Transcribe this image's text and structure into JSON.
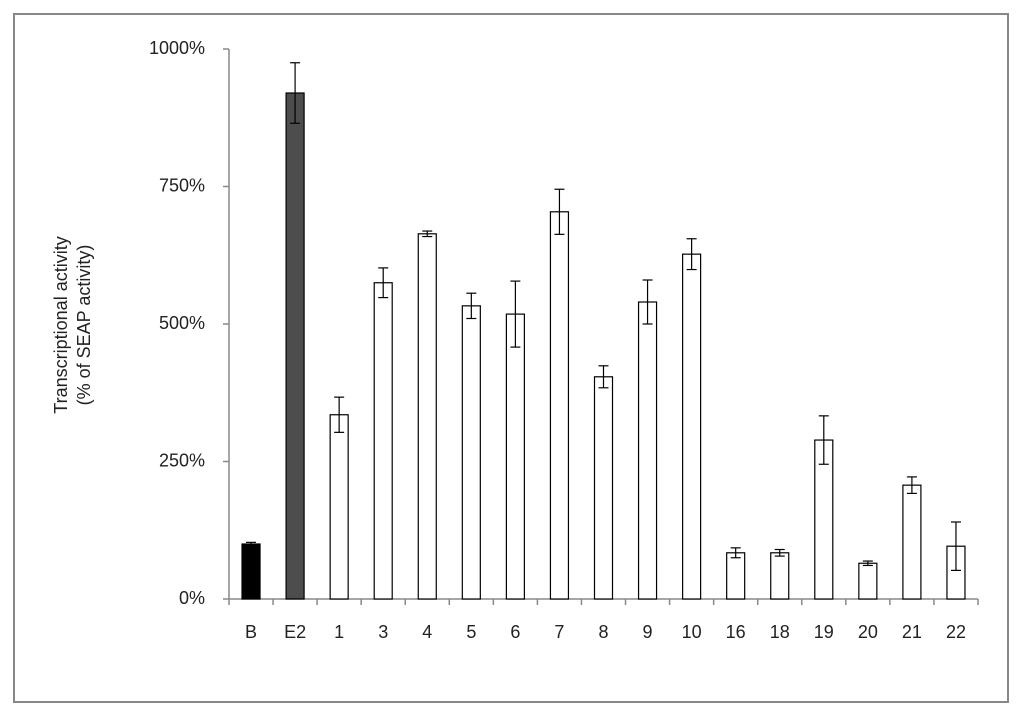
{
  "chart_data": {
    "type": "bar",
    "ylabel": [
      "Transcriptional activity",
      "(% of SEAP activity)"
    ],
    "categories": [
      "B",
      "E2",
      "1",
      "3",
      "4",
      "5",
      "6",
      "7",
      "8",
      "9",
      "10",
      "16",
      "18",
      "19",
      "20",
      "21",
      "22"
    ],
    "values": [
      100,
      920,
      335,
      575,
      664,
      533,
      518,
      704,
      404,
      540,
      627,
      84,
      84,
      289,
      65,
      207,
      96
    ],
    "errors": [
      3,
      55,
      32,
      27,
      5,
      23,
      60,
      41,
      20,
      40,
      28,
      9,
      6,
      44,
      4,
      15,
      44
    ],
    "colors": [
      "#000000",
      "#4d4d4d",
      "#ffffff",
      "#ffffff",
      "#ffffff",
      "#ffffff",
      "#ffffff",
      "#ffffff",
      "#ffffff",
      "#ffffff",
      "#ffffff",
      "#ffffff",
      "#ffffff",
      "#ffffff",
      "#ffffff",
      "#ffffff",
      "#ffffff"
    ],
    "ylim": [
      0,
      1000
    ],
    "yticks": [
      {
        "value": 0,
        "label": "0%"
      },
      {
        "value": 250,
        "label": "250%"
      },
      {
        "value": 500,
        "label": "500%"
      },
      {
        "value": 750,
        "label": "750%"
      },
      {
        "value": 1000,
        "label": "1000%"
      }
    ]
  }
}
